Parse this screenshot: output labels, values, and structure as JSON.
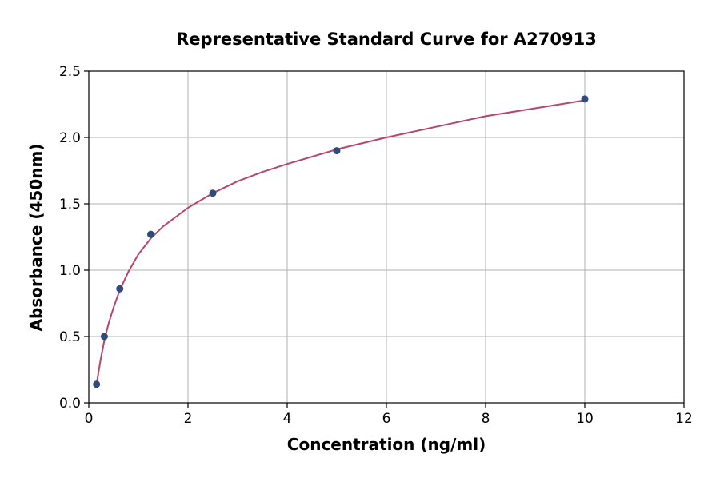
{
  "chart_data": {
    "type": "scatter",
    "title": "Representative Standard Curve for A270913",
    "xlabel": "Concentration (ng/ml)",
    "ylabel": "Absorbance (450nm)",
    "xlim": [
      0,
      12
    ],
    "ylim": [
      0,
      2.5
    ],
    "x_ticks": [
      0,
      2,
      4,
      6,
      8,
      10,
      12
    ],
    "y_ticks": [
      0.0,
      0.5,
      1.0,
      1.5,
      2.0,
      2.5
    ],
    "x_tick_labels": [
      "0",
      "2",
      "4",
      "6",
      "8",
      "10",
      "12"
    ],
    "y_tick_labels": [
      "0.0",
      "0.5",
      "1.0",
      "1.5",
      "2.0",
      "2.5"
    ],
    "grid": true,
    "series": [
      {
        "type": "scatter",
        "x": [
          0.156,
          0.313,
          0.625,
          1.25,
          2.5,
          5.0,
          10.0
        ],
        "y": [
          0.14,
          0.5,
          0.86,
          1.27,
          1.58,
          1.9,
          2.29
        ],
        "color": "#2f4b7c"
      },
      {
        "type": "line",
        "x": [
          0.156,
          0.2,
          0.25,
          0.313,
          0.4,
          0.5,
          0.625,
          0.8,
          1.0,
          1.25,
          1.5,
          2.0,
          2.5,
          3.0,
          3.5,
          4.0,
          5.0,
          6.0,
          7.0,
          8.0,
          9.0,
          10.0
        ],
        "y": [
          0.14,
          0.24,
          0.35,
          0.47,
          0.6,
          0.72,
          0.85,
          0.99,
          1.12,
          1.24,
          1.33,
          1.47,
          1.58,
          1.67,
          1.74,
          1.8,
          1.91,
          2.0,
          2.08,
          2.16,
          2.22,
          2.28
        ],
        "color": "#b5476a"
      }
    ]
  }
}
